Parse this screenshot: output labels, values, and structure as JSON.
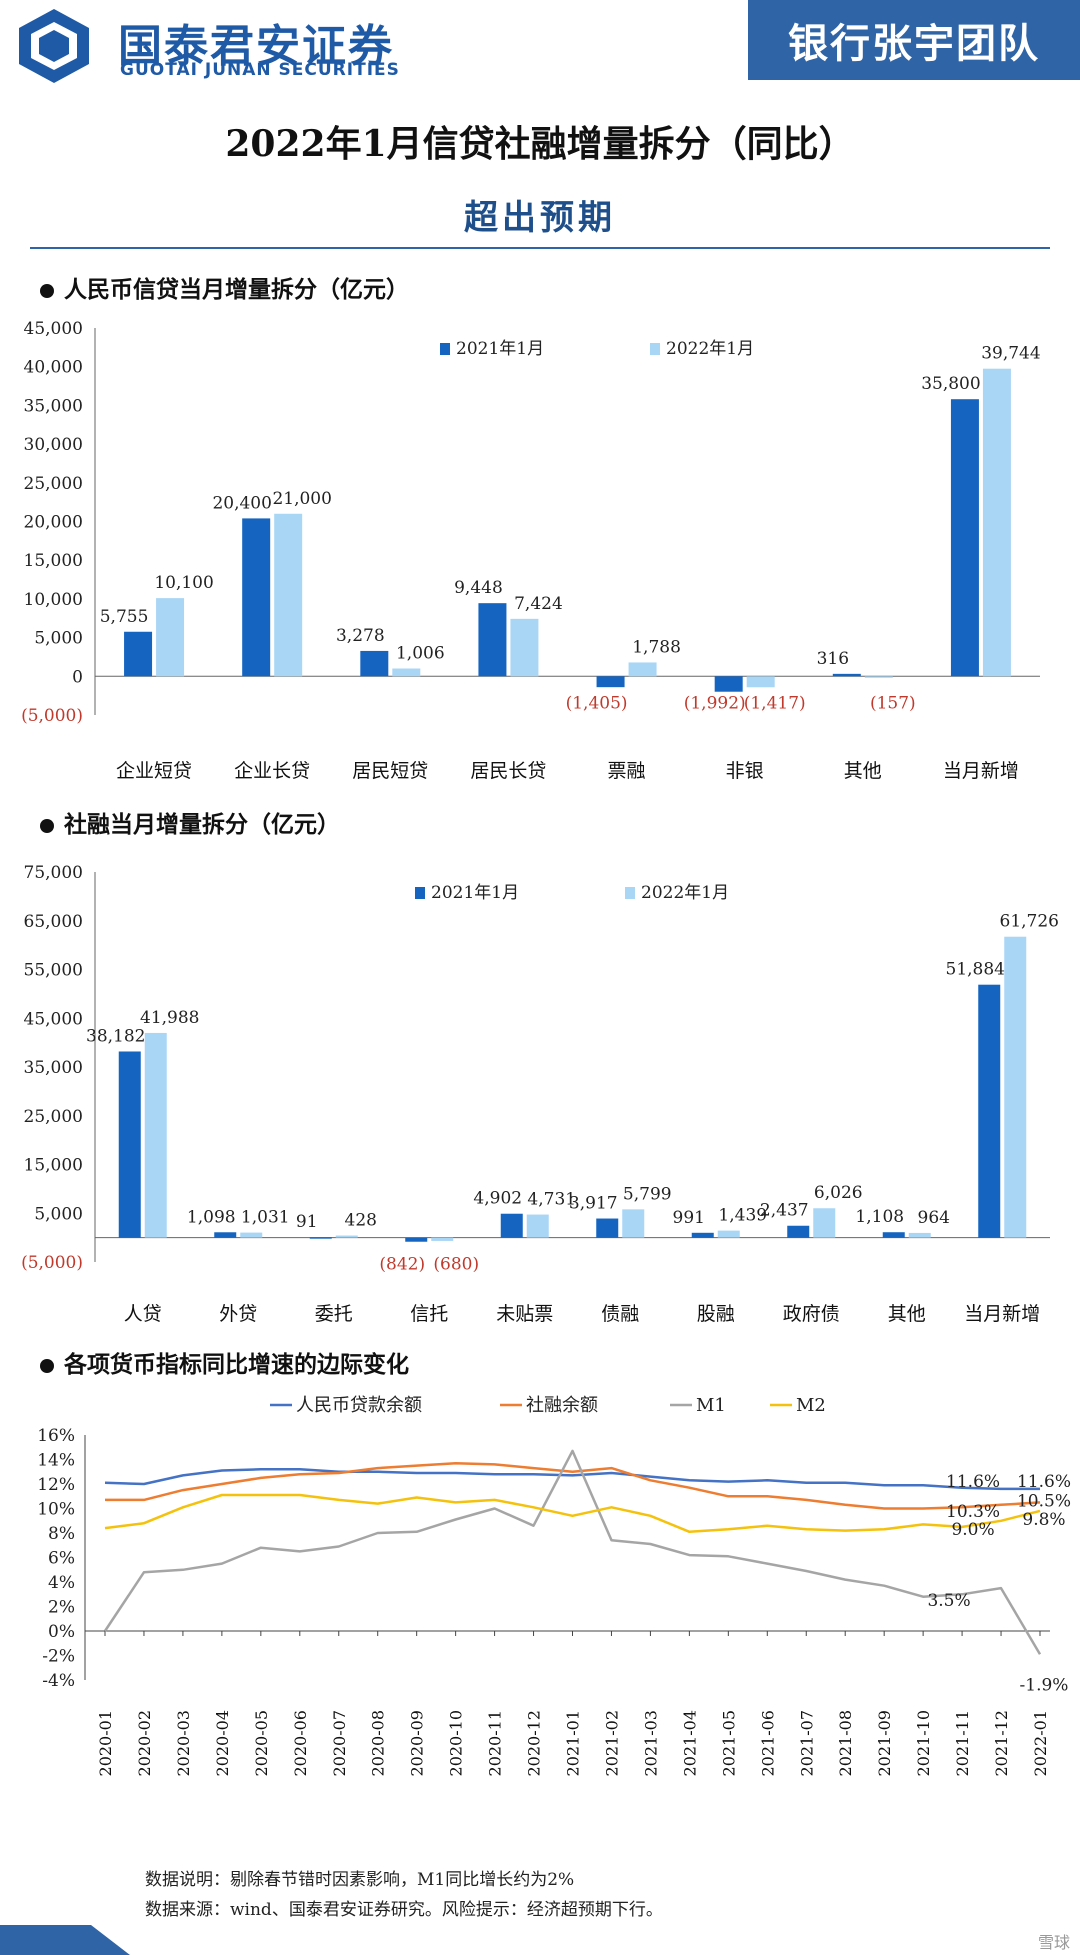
{
  "header": {
    "brand_cn": "国泰君安证券",
    "brand_en": "GUOTAI JUNAN SECURITIES",
    "team": "银行张宇团队",
    "brand_color": "#1f5aa6",
    "team_bg": "#2f64a6",
    "logo_icon": "hexagon-logo-icon"
  },
  "title": "2022年1月信贷社融增量拆分（同比）",
  "subtitle": "超出预期",
  "colors": {
    "series_2021": "#1565c0",
    "series_2022": "#a9d6f5",
    "neg_label": "#c0392b",
    "line_loan": "#4472c4",
    "line_tsf": "#ed7d31",
    "line_m1": "#a5a5a5",
    "line_m2": "#f4c20d"
  },
  "chart_data": [
    {
      "type": "bar",
      "section_title": "人民币信贷当月增量拆分（亿元）",
      "categories": [
        "企业短贷",
        "企业长贷",
        "居民短贷",
        "居民长贷",
        "票融",
        "非银",
        "其他",
        "当月新增"
      ],
      "series": [
        {
          "name": "2021年1月",
          "values": [
            5755,
            20400,
            3278,
            9448,
            -1405,
            -1992,
            316,
            35800
          ]
        },
        {
          "name": "2022年1月",
          "values": [
            10100,
            21000,
            1006,
            7424,
            1788,
            -1417,
            -157,
            39744
          ]
        }
      ],
      "value_labels": {
        "s2021": [
          "5,755",
          "20,400",
          "3,278",
          "9,448",
          "(1,405)",
          "(1,992)",
          "316",
          "35,800"
        ],
        "s2022": [
          "10,100",
          "21,000",
          "1,006",
          "7,424",
          "1,788",
          "(1,417)",
          "(157)",
          "39,744"
        ]
      },
      "ylim": [
        -5000,
        45000
      ],
      "yticks": [
        -5000,
        0,
        5000,
        10000,
        15000,
        20000,
        25000,
        30000,
        35000,
        40000,
        45000
      ],
      "ytick_labels": [
        "(5,000)",
        "0",
        "5,000",
        "10,000",
        "15,000",
        "20,000",
        "25,000",
        "30,000",
        "35,000",
        "40,000",
        "45,000"
      ],
      "legend": "top-center"
    },
    {
      "type": "bar",
      "section_title": "社融当月增量拆分（亿元）",
      "categories": [
        "人贷",
        "外贷",
        "委托",
        "信托",
        "未贴票",
        "债融",
        "股融",
        "政府债",
        "其他",
        "当月新增"
      ],
      "series": [
        {
          "name": "2021年1月",
          "values": [
            38182,
            1098,
            91,
            -842,
            4902,
            3917,
            991,
            2437,
            1108,
            51884
          ]
        },
        {
          "name": "2022年1月",
          "values": [
            41988,
            1031,
            428,
            -680,
            4731,
            5799,
            1439,
            6026,
            964,
            61726
          ]
        }
      ],
      "value_labels": {
        "s2021": [
          "38,182",
          "1,098",
          "91",
          "(842)",
          "4,902",
          "3,917",
          "991",
          "2,437",
          "1,108",
          "51,884"
        ],
        "s2022": [
          "41,988",
          "1,031",
          "428",
          "(680)",
          "4,731",
          "5,799",
          "1,439",
          "6,026",
          "964",
          "61,726"
        ]
      },
      "ylim": [
        -5000,
        75000
      ],
      "yticks": [
        -5000,
        5000,
        15000,
        25000,
        35000,
        45000,
        55000,
        65000,
        75000
      ],
      "ytick_labels": [
        "(5,000)",
        "5,000",
        "15,000",
        "25,000",
        "35,000",
        "45,000",
        "55,000",
        "65,000",
        "75,000"
      ],
      "legend": "top-center"
    },
    {
      "type": "line",
      "section_title": "各项货币指标同比增速的边际变化",
      "x": [
        "2020-01",
        "2020-02",
        "2020-03",
        "2020-04",
        "2020-05",
        "2020-06",
        "2020-07",
        "2020-08",
        "2020-09",
        "2020-10",
        "2020-11",
        "2020-12",
        "2021-01",
        "2021-02",
        "2021-03",
        "2021-04",
        "2021-05",
        "2021-06",
        "2021-07",
        "2021-08",
        "2021-09",
        "2021-10",
        "2021-11",
        "2021-12",
        "2022-01"
      ],
      "series": [
        {
          "name": "人民币贷款余额",
          "values": [
            12.1,
            12.0,
            12.7,
            13.1,
            13.2,
            13.2,
            13.0,
            13.0,
            12.9,
            12.9,
            12.8,
            12.8,
            12.7,
            12.9,
            12.6,
            12.3,
            12.2,
            12.3,
            12.1,
            12.1,
            11.9,
            11.9,
            11.7,
            11.6,
            11.6
          ]
        },
        {
          "name": "社融余额",
          "values": [
            10.7,
            10.7,
            11.5,
            12.0,
            12.5,
            12.8,
            12.9,
            13.3,
            13.5,
            13.7,
            13.6,
            13.3,
            13.0,
            13.3,
            12.3,
            11.7,
            11.0,
            11.0,
            10.7,
            10.3,
            10.0,
            10.0,
            10.1,
            10.3,
            10.5
          ]
        },
        {
          "name": "M1",
          "values": [
            0.0,
            4.8,
            5.0,
            5.5,
            6.8,
            6.5,
            6.9,
            8.0,
            8.1,
            9.1,
            10.0,
            8.6,
            14.7,
            7.4,
            7.1,
            6.2,
            6.1,
            5.5,
            4.9,
            4.2,
            3.7,
            2.8,
            3.0,
            3.5,
            -1.9
          ]
        },
        {
          "name": "M2",
          "values": [
            8.4,
            8.8,
            10.1,
            11.1,
            11.1,
            11.1,
            10.7,
            10.4,
            10.9,
            10.5,
            10.7,
            10.1,
            9.4,
            10.1,
            9.4,
            8.1,
            8.3,
            8.6,
            8.3,
            8.2,
            8.3,
            8.7,
            8.5,
            9.0,
            9.8
          ]
        }
      ],
      "end_labels": [
        "11.6%",
        "11.6%",
        "10.3%",
        "10.5%",
        "9.0%",
        "9.8%",
        "3.5%",
        "-1.9%"
      ],
      "ylim": [
        -4,
        16
      ],
      "yticks": [
        -4,
        -2,
        0,
        2,
        4,
        6,
        8,
        10,
        12,
        14,
        16
      ],
      "ytick_labels": [
        "-4%",
        "-2%",
        "0%",
        "2%",
        "4%",
        "6%",
        "8%",
        "10%",
        "12%",
        "14%",
        "16%"
      ],
      "legend": "top"
    }
  ],
  "notes": {
    "line1": "数据说明：剔除春节错时因素影响，M1同比增长约为2%",
    "line2": "数据来源：wind、国泰君安证券研究。风险提示：经济超预期下行。"
  },
  "watermark": "雪球"
}
